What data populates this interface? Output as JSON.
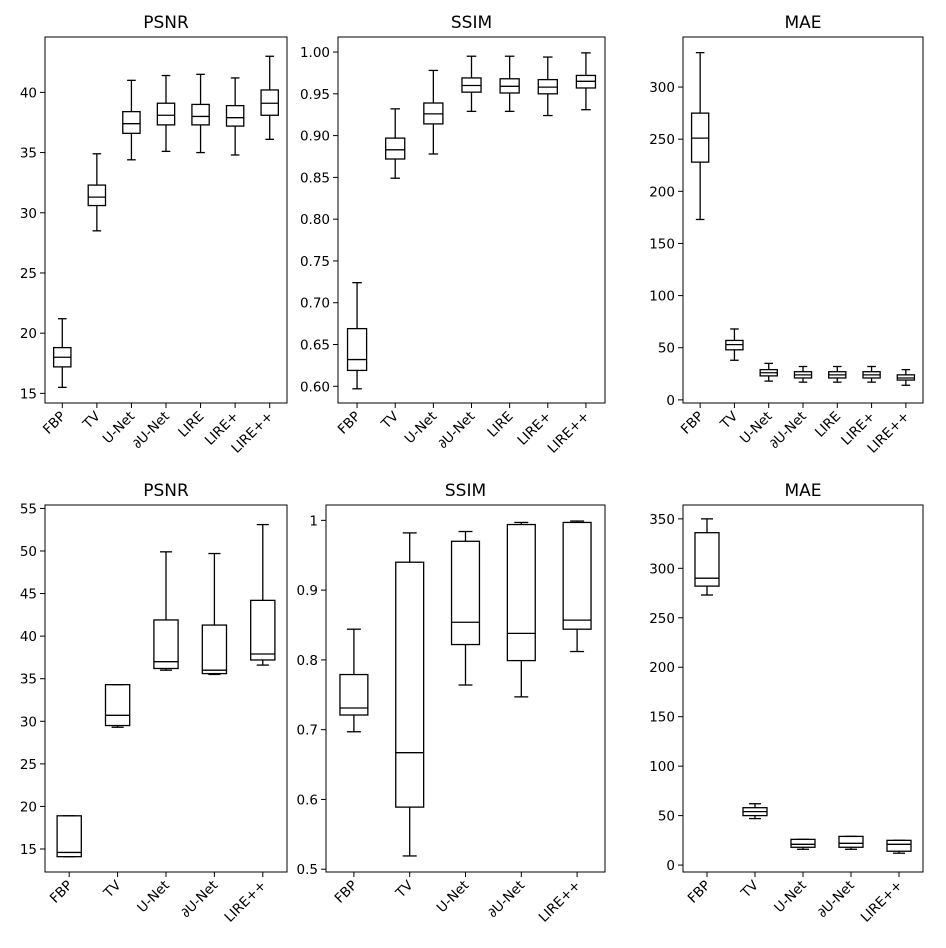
{
  "chart_data": [
    {
      "type": "box",
      "title": "PSNR",
      "ylim": [
        14.2,
        44.6
      ],
      "yticks": [
        15,
        20,
        25,
        30,
        35,
        40
      ],
      "categories": [
        "FBP",
        "TV",
        "U-Net",
        "∂U-Net",
        "LIRE",
        "LIRE+",
        "LIRE++"
      ],
      "boxes": [
        {
          "whislo": 15.5,
          "q1": 17.2,
          "med": 18.0,
          "q3": 18.8,
          "whishi": 21.2
        },
        {
          "whislo": 28.5,
          "q1": 30.6,
          "med": 31.3,
          "q3": 32.3,
          "whishi": 34.9
        },
        {
          "whislo": 34.4,
          "q1": 36.6,
          "med": 37.4,
          "q3": 38.4,
          "whishi": 41.0
        },
        {
          "whislo": 35.1,
          "q1": 37.3,
          "med": 38.1,
          "q3": 39.1,
          "whishi": 41.4
        },
        {
          "whislo": 35.0,
          "q1": 37.3,
          "med": 38.0,
          "q3": 39.0,
          "whishi": 41.5
        },
        {
          "whislo": 34.8,
          "q1": 37.2,
          "med": 37.9,
          "q3": 38.9,
          "whishi": 41.2
        },
        {
          "whislo": 36.1,
          "q1": 38.1,
          "med": 39.1,
          "q3": 40.2,
          "whishi": 43.0
        }
      ]
    },
    {
      "type": "box",
      "title": "SSIM",
      "ylim": [
        0.58,
        1.018
      ],
      "yticks": [
        0.6,
        0.65,
        0.7,
        0.75,
        0.8,
        0.85,
        0.9,
        0.95,
        1.0
      ],
      "yticklabels": [
        "0.60",
        "0.65",
        "0.70",
        "0.75",
        "0.80",
        "0.85",
        "0.90",
        "0.95",
        "1.00"
      ],
      "categories": [
        "FBP",
        "TV",
        "U-Net",
        "∂U-Net",
        "LIRE",
        "LIRE+",
        "LIRE++"
      ],
      "boxes": [
        {
          "whislo": 0.597,
          "q1": 0.619,
          "med": 0.632,
          "q3": 0.669,
          "whishi": 0.724
        },
        {
          "whislo": 0.849,
          "q1": 0.872,
          "med": 0.883,
          "q3": 0.897,
          "whishi": 0.932
        },
        {
          "whislo": 0.878,
          "q1": 0.914,
          "med": 0.926,
          "q3": 0.939,
          "whishi": 0.978
        },
        {
          "whislo": 0.929,
          "q1": 0.952,
          "med": 0.96,
          "q3": 0.969,
          "whishi": 0.995
        },
        {
          "whislo": 0.929,
          "q1": 0.951,
          "med": 0.959,
          "q3": 0.968,
          "whishi": 0.995
        },
        {
          "whislo": 0.924,
          "q1": 0.95,
          "med": 0.958,
          "q3": 0.967,
          "whishi": 0.994
        },
        {
          "whislo": 0.931,
          "q1": 0.957,
          "med": 0.965,
          "q3": 0.972,
          "whishi": 0.999
        }
      ]
    },
    {
      "type": "box",
      "title": "MAE",
      "ylim": [
        -3,
        348
      ],
      "yticks": [
        0,
        50,
        100,
        150,
        200,
        250,
        300
      ],
      "categories": [
        "FBP",
        "TV",
        "U-Net",
        "∂U-Net",
        "LIRE",
        "LIRE+",
        "LIRE++"
      ],
      "boxes": [
        {
          "whislo": 173,
          "q1": 228,
          "med": 251,
          "q3": 275,
          "whishi": 333
        },
        {
          "whislo": 38,
          "q1": 48,
          "med": 53,
          "q3": 57,
          "whishi": 68
        },
        {
          "whislo": 18,
          "q1": 23,
          "med": 26,
          "q3": 29,
          "whishi": 35
        },
        {
          "whislo": 17,
          "q1": 21,
          "med": 24,
          "q3": 27,
          "whishi": 32
        },
        {
          "whislo": 17,
          "q1": 21,
          "med": 24,
          "q3": 27,
          "whishi": 32
        },
        {
          "whislo": 17,
          "q1": 21,
          "med": 24,
          "q3": 27,
          "whishi": 32
        },
        {
          "whislo": 14,
          "q1": 19,
          "med": 21,
          "q3": 24,
          "whishi": 29
        }
      ]
    },
    {
      "type": "box",
      "title": "PSNR",
      "ylim": [
        12.3,
        55.4
      ],
      "yticks": [
        15,
        20,
        25,
        30,
        35,
        40,
        45,
        50,
        55
      ],
      "categories": [
        "FBP",
        "TV",
        "U-Net",
        "∂U-Net",
        "LIRE++"
      ],
      "boxes": [
        {
          "whislo": 14.1,
          "q1": 14.1,
          "med": 14.6,
          "q3": 18.9,
          "whishi": 18.9
        },
        {
          "whislo": 29.3,
          "q1": 29.5,
          "med": 30.7,
          "q3": 34.3,
          "whishi": 34.3
        },
        {
          "whislo": 36.0,
          "q1": 36.2,
          "med": 37.0,
          "q3": 41.9,
          "whishi": 49.9
        },
        {
          "whislo": 35.5,
          "q1": 35.6,
          "med": 36.0,
          "q3": 41.3,
          "whishi": 49.7
        },
        {
          "whislo": 36.6,
          "q1": 37.2,
          "med": 37.9,
          "q3": 44.2,
          "whishi": 53.1
        }
      ]
    },
    {
      "type": "box",
      "title": "SSIM",
      "ylim": [
        0.496,
        1.022
      ],
      "yticks": [
        0.5,
        0.6,
        0.7,
        0.8,
        0.9,
        1.0
      ],
      "categories": [
        "FBP",
        "TV",
        "U-Net",
        "∂U-Net",
        "LIRE++"
      ],
      "boxes": [
        {
          "whislo": 0.697,
          "q1": 0.721,
          "med": 0.731,
          "q3": 0.779,
          "whishi": 0.844
        },
        {
          "whislo": 0.519,
          "q1": 0.589,
          "med": 0.667,
          "q3": 0.94,
          "whishi": 0.982
        },
        {
          "whislo": 0.764,
          "q1": 0.822,
          "med": 0.854,
          "q3": 0.97,
          "whishi": 0.984
        },
        {
          "whislo": 0.747,
          "q1": 0.799,
          "med": 0.838,
          "q3": 0.994,
          "whishi": 0.997
        },
        {
          "whislo": 0.812,
          "q1": 0.844,
          "med": 0.857,
          "q3": 0.997,
          "whishi": 0.999
        }
      ]
    },
    {
      "type": "box",
      "title": "MAE",
      "ylim": [
        -7,
        364
      ],
      "yticks": [
        0,
        50,
        100,
        150,
        200,
        250,
        300,
        350
      ],
      "categories": [
        "FBP",
        "TV",
        "U-Net",
        "∂U-Net",
        "LIRE++"
      ],
      "boxes": [
        {
          "whislo": 273,
          "q1": 282,
          "med": 290,
          "q3": 336,
          "whishi": 350
        },
        {
          "whislo": 47,
          "q1": 50,
          "med": 54,
          "q3": 58,
          "whishi": 62
        },
        {
          "whislo": 16,
          "q1": 18,
          "med": 21,
          "q3": 26,
          "whishi": 26
        },
        {
          "whislo": 16,
          "q1": 18,
          "med": 22,
          "q3": 29,
          "whishi": 29
        },
        {
          "whislo": 12,
          "q1": 14,
          "med": 21,
          "q3": 25,
          "whishi": 25
        }
      ]
    }
  ]
}
